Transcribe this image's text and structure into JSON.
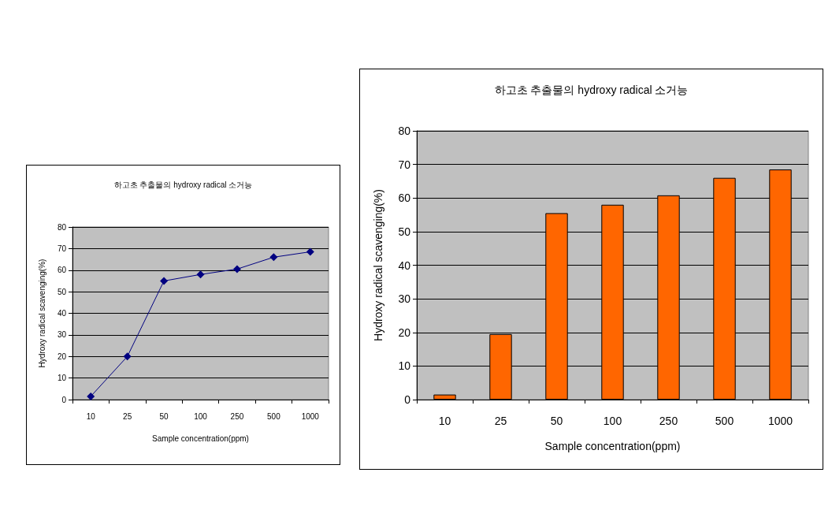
{
  "chart_data": [
    {
      "type": "line",
      "title": "하고초 추출물의 hydroxy radical 소거능",
      "xlabel": "Sample concentration(ppm)",
      "ylabel": "Hydroxy radical scavenging(%)",
      "categories": [
        "10",
        "25",
        "50",
        "100",
        "250",
        "500",
        "1000"
      ],
      "series": [
        {
          "color": "#000080",
          "values": [
            1.5,
            20,
            55,
            58,
            60.5,
            66,
            68.5
          ]
        }
      ],
      "ylim": [
        0,
        80
      ],
      "yticks": [
        0,
        10,
        20,
        30,
        40,
        50,
        60,
        70,
        80
      ],
      "grid": "y",
      "marker": "diamond",
      "line_style": "solid"
    },
    {
      "type": "bar",
      "title": "하고초 추출물의 hydroxy radical 소거능",
      "xlabel": "Sample concentration(ppm)",
      "ylabel": "Hydroxy radical scavenging(%)",
      "categories": [
        "10",
        "25",
        "50",
        "100",
        "250",
        "500",
        "1000"
      ],
      "series": [
        {
          "color": "#ff6600",
          "values": [
            1.5,
            19.5,
            55.5,
            58,
            60.8,
            66,
            68.5
          ]
        }
      ],
      "ylim": [
        0,
        80
      ],
      "yticks": [
        0,
        10,
        20,
        30,
        40,
        50,
        60,
        70,
        80
      ],
      "grid": "y"
    }
  ]
}
